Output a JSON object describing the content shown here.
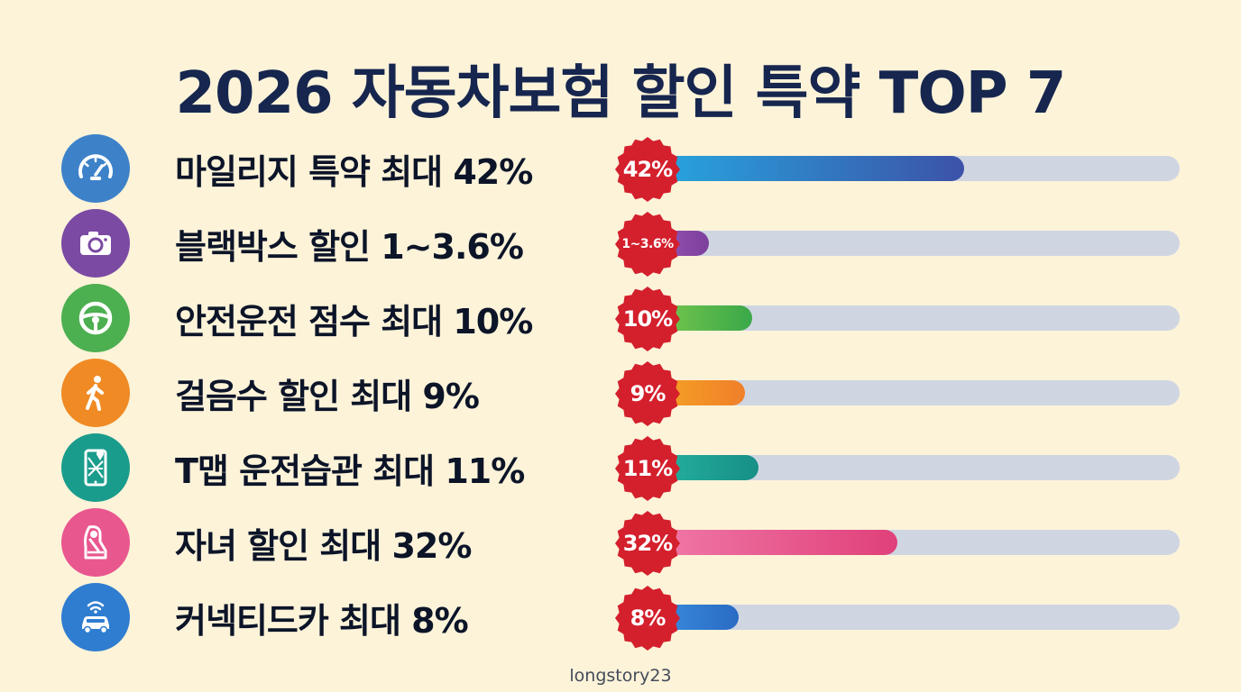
{
  "title": "2026 자동차보험 할인 특약 TOP 7",
  "watermark": "longstory23",
  "colors": {
    "background": "#fcf3d9",
    "title": "#16264e",
    "badge": "#d41f2c",
    "track": "#cfd6e2"
  },
  "chart_data": {
    "type": "bar",
    "orientation": "horizontal",
    "title": "2026 자동차보험 할인 특약 TOP 7",
    "categories": [
      "마일리지 특약 최대 42%",
      "블랙박스 할인 1~3.6%",
      "안전운전 점수 최대 10%",
      "걸음수 할인 최대 9%",
      "T맵 운전습관 최대 11%",
      "자녀 할인 최대 32%",
      "커넥티드카 최대 8%"
    ],
    "values": [
      42,
      3.6,
      10,
      9,
      11,
      32,
      8
    ],
    "value_labels": [
      "42%",
      "1~3.6%",
      "10%",
      "9%",
      "11%",
      "32%",
      "8%"
    ],
    "xlim": [
      0,
      100
    ],
    "grid": false,
    "legend": "none",
    "items": [
      {
        "icon": "speedometer-icon",
        "color": "#3d82c9",
        "bar_from": "#26a8e0",
        "bar_to": "#3c52a8"
      },
      {
        "icon": "camera-icon",
        "color": "#7b4aa3",
        "bar_from": "#9b59b6",
        "bar_to": "#7c3f9c"
      },
      {
        "icon": "steering-wheel-icon",
        "color": "#4caf50",
        "bar_from": "#7cc94c",
        "bar_to": "#3aa84a"
      },
      {
        "icon": "walking-person-icon",
        "color": "#f08a24",
        "bar_from": "#f5a623",
        "bar_to": "#f07f2a"
      },
      {
        "icon": "phone-map-icon",
        "color": "#1a9c8c",
        "bar_from": "#25b3a0",
        "bar_to": "#178f86"
      },
      {
        "icon": "child-car-seat-icon",
        "color": "#e9578f",
        "bar_from": "#f07aa8",
        "bar_to": "#e0407a"
      },
      {
        "icon": "connected-car-icon",
        "color": "#2f7dd0",
        "bar_from": "#3b8fe0",
        "bar_to": "#2a6bc4"
      }
    ]
  }
}
